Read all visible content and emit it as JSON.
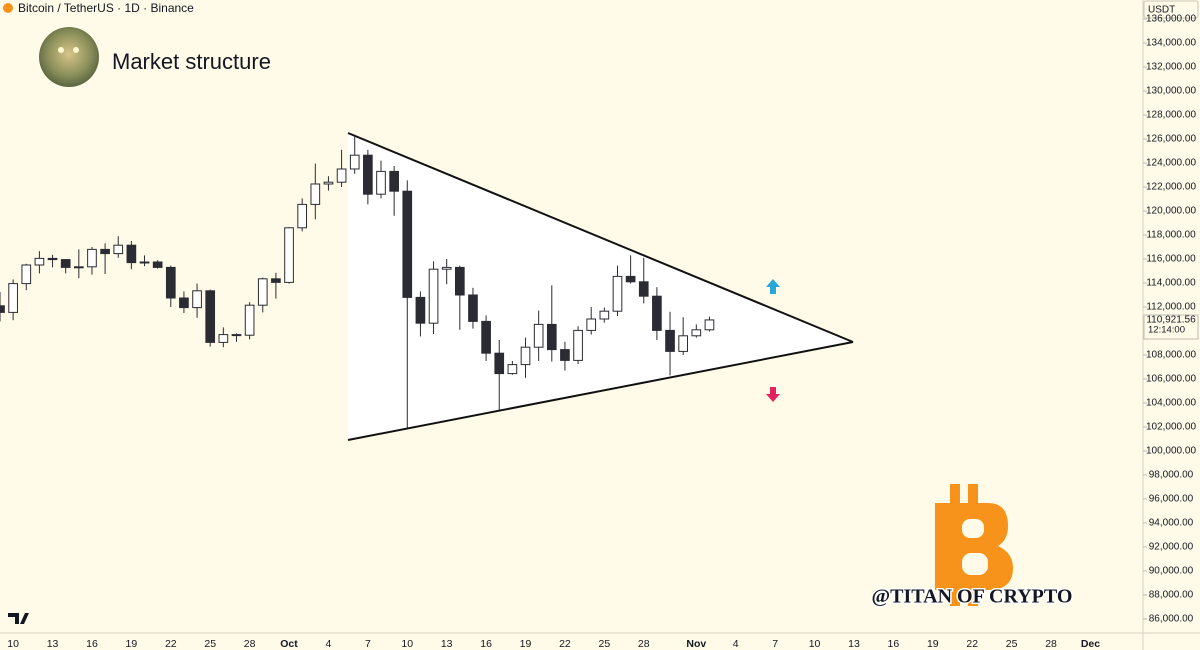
{
  "chart_data": {
    "type": "candlestick",
    "symbol_title": "Bitcoin / TetherUS · 1D · Binance",
    "title": "Market structure",
    "currency": "USDT",
    "last_price_label": "110,921.56",
    "countdown": "12:14:00",
    "watermark": "@TITAN OF CRYPTO",
    "up_color": "#ffffff",
    "down_color": "#2b2b33",
    "x": [
      "Sep 9",
      "Sep 10",
      "Sep 11",
      "Sep 12",
      "Sep 13",
      "Sep 14",
      "Sep 15",
      "Sep 16",
      "Sep 17",
      "Sep 18",
      "Sep 19",
      "Sep 20",
      "Sep 21",
      "Sep 22",
      "Sep 23",
      "Sep 24",
      "Sep 25",
      "Sep 26",
      "Sep 27",
      "Sep 28",
      "Sep 29",
      "Sep 30",
      "Oct 1",
      "Oct 2",
      "Oct 3",
      "Oct 4",
      "Oct 5",
      "Oct 6",
      "Oct 7",
      "Oct 8",
      "Oct 9",
      "Oct 10",
      "Oct 11",
      "Oct 12",
      "Oct 13",
      "Oct 14",
      "Oct 15",
      "Oct 16",
      "Oct 17",
      "Oct 18",
      "Oct 19",
      "Oct 20",
      "Oct 21",
      "Oct 22",
      "Oct 23",
      "Oct 24",
      "Oct 25",
      "Oct 26",
      "Oct 27",
      "Oct 28",
      "Oct 29",
      "Oct 30",
      "Oct 31",
      "Nov 1",
      "Nov 2"
    ],
    "open": [
      112100,
      111550,
      113950,
      115500,
      116050,
      115950,
      115300,
      115350,
      116800,
      116450,
      117150,
      115700,
      115750,
      115300,
      112750,
      111950,
      113350,
      109050,
      109700,
      109650,
      112150,
      114350,
      114050,
      118600,
      120550,
      122250,
      122400,
      123500,
      124650,
      121400,
      123300,
      121650,
      112800,
      110650,
      115150,
      115300,
      113000,
      110800,
      108150,
      106450,
      107200,
      108650,
      110550,
      108450,
      107550,
      110050,
      111000,
      111650,
      114550,
      114100,
      112900,
      110050,
      108300,
      109600,
      110100
    ],
    "high": [
      113250,
      114300,
      115600,
      116650,
      116350,
      116000,
      116800,
      117000,
      117300,
      117900,
      117500,
      116300,
      115900,
      115450,
      113300,
      113950,
      113450,
      110300,
      109800,
      112400,
      114450,
      114850,
      118650,
      121050,
      123950,
      122900,
      125100,
      126200,
      125100,
      124200,
      123750,
      122550,
      113300,
      115800,
      116000,
      115450,
      113600,
      111300,
      109250,
      107500,
      109450,
      111700,
      113800,
      109100,
      110400,
      112000,
      111950,
      115450,
      116300,
      116100,
      113650,
      111600,
      111150,
      110550,
      111200
    ],
    "low": [
      110800,
      110900,
      113400,
      114800,
      115300,
      114800,
      114400,
      114700,
      114750,
      116100,
      115150,
      115400,
      115200,
      112000,
      111500,
      111100,
      108700,
      108650,
      109100,
      109300,
      111550,
      112700,
      113950,
      118300,
      119300,
      121700,
      122000,
      123100,
      120550,
      121050,
      119600,
      101900,
      109550,
      109750,
      113900,
      110100,
      110200,
      107500,
      103400,
      106350,
      106100,
      107500,
      107450,
      106700,
      107250,
      109700,
      110700,
      111250,
      113950,
      112300,
      109250,
      106300,
      108000,
      109450,
      109950
    ],
    "close": [
      111550,
      113950,
      115500,
      116050,
      115950,
      115300,
      115350,
      116800,
      116450,
      117150,
      115700,
      115750,
      115300,
      112750,
      111950,
      113350,
      109050,
      109700,
      109650,
      112150,
      114350,
      114050,
      118600,
      120550,
      122250,
      122400,
      123500,
      124650,
      121400,
      123300,
      121650,
      112800,
      110650,
      115150,
      115300,
      113000,
      110800,
      108150,
      106450,
      107200,
      108650,
      110550,
      108450,
      107550,
      110050,
      111000,
      111650,
      114550,
      114100,
      112900,
      110050,
      108300,
      109600,
      110100,
      110921.56
    ],
    "xlim": [
      "Sep 9",
      "Dec 5"
    ],
    "xticks": [
      {
        "value": "Sep 10",
        "label": "10"
      },
      {
        "value": "Sep 13",
        "label": "13"
      },
      {
        "value": "Sep 16",
        "label": "16"
      },
      {
        "value": "Sep 19",
        "label": "19"
      },
      {
        "value": "Sep 22",
        "label": "22"
      },
      {
        "value": "Sep 25",
        "label": "25"
      },
      {
        "value": "Sep 28",
        "label": "28"
      },
      {
        "value": "Oct 1",
        "label": "Oct"
      },
      {
        "value": "Oct 4",
        "label": "4"
      },
      {
        "value": "Oct 7",
        "label": "7"
      },
      {
        "value": "Oct 10",
        "label": "10"
      },
      {
        "value": "Oct 13",
        "label": "13"
      },
      {
        "value": "Oct 16",
        "label": "16"
      },
      {
        "value": "Oct 19",
        "label": "19"
      },
      {
        "value": "Oct 22",
        "label": "22"
      },
      {
        "value": "Oct 25",
        "label": "25"
      },
      {
        "value": "Oct 28",
        "label": "28"
      },
      {
        "value": "Nov 1",
        "label": "Nov"
      },
      {
        "value": "Nov 4",
        "label": "4"
      },
      {
        "value": "Nov 7",
        "label": "7"
      },
      {
        "value": "Nov 10",
        "label": "10"
      },
      {
        "value": "Nov 13",
        "label": "13"
      },
      {
        "value": "Nov 16",
        "label": "16"
      },
      {
        "value": "Nov 19",
        "label": "19"
      },
      {
        "value": "Nov 22",
        "label": "22"
      },
      {
        "value": "Nov 25",
        "label": "25"
      },
      {
        "value": "Nov 28",
        "label": "28"
      },
      {
        "value": "Dec 1",
        "label": "Dec"
      }
    ],
    "ylim": [
      84833,
      137583
    ],
    "yticks": [
      {
        "value": 86000,
        "label": "86,000.00"
      },
      {
        "value": 88000,
        "label": "88,000.00"
      },
      {
        "value": 90000,
        "label": "90,000.00"
      },
      {
        "value": 92000,
        "label": "92,000.00"
      },
      {
        "value": 94000,
        "label": "94,000.00"
      },
      {
        "value": 96000,
        "label": "96,000.00"
      },
      {
        "value": 98000,
        "label": "98,000.00"
      },
      {
        "value": 100000,
        "label": "100,000.00"
      },
      {
        "value": 102000,
        "label": "102,000.00"
      },
      {
        "value": 104000,
        "label": "104,000.00"
      },
      {
        "value": 106000,
        "label": "106,000.00"
      },
      {
        "value": 108000,
        "label": "108,000.00"
      },
      {
        "value": 112000,
        "label": "112,000.00"
      },
      {
        "value": 114000,
        "label": "114,000.00"
      },
      {
        "value": 116000,
        "label": "116,000.00"
      },
      {
        "value": 118000,
        "label": "118,000.00"
      },
      {
        "value": 120000,
        "label": "120,000.00"
      },
      {
        "value": 122000,
        "label": "122,000.00"
      },
      {
        "value": 124000,
        "label": "124,000.00"
      },
      {
        "value": 126000,
        "label": "126,000.00"
      },
      {
        "value": 128000,
        "label": "128,000.00"
      },
      {
        "value": 130000,
        "label": "130,000.00"
      },
      {
        "value": 132000,
        "label": "132,000.00"
      },
      {
        "value": 134000,
        "label": "134,000.00"
      },
      {
        "value": 136000,
        "label": "136,000.00"
      }
    ]
  }
}
